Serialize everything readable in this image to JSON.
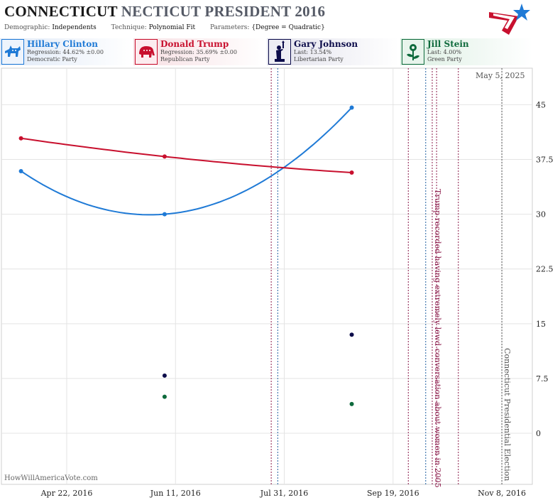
{
  "header": {
    "title_main": "CONNECTICUT",
    "title_secondary": "NECTICUT PRESIDENT 2016",
    "demographic_label": "Demographic:",
    "demographic": "Independents",
    "technique_label": "Technique:",
    "technique": "Polynomial Fit",
    "parameters_label": "Parameters:",
    "parameters": "{Degree = Quadratic}"
  },
  "candidates": [
    {
      "name": "Hillary Clinton",
      "stat": "Regression: 44.62% ±0.00",
      "party": "Democratic Party",
      "color": "#1f7ad6",
      "icon": "donkey-icon"
    },
    {
      "name": "Donald Trump",
      "stat": "Regression: 35.69% ±0.00",
      "party": "Republican Party",
      "color": "#c8102e",
      "icon": "elephant-icon"
    },
    {
      "name": "Gary Johnson",
      "stat": "Last: 13.54%",
      "party": "Libertarian Party",
      "color": "#0c0c4a",
      "icon": "statue-of-liberty-icon"
    },
    {
      "name": "Jill Stein",
      "stat": "Last: 4.00%",
      "party": "Green Party",
      "color": "#0e6a3c",
      "icon": "flower-icon"
    }
  ],
  "as_of": "May 5, 2025",
  "watermark": "HowWillAmericaVote.com",
  "chart_data": {
    "type": "line",
    "x_axis": {
      "type": "date",
      "range": [
        "2016-03-23",
        "2016-11-22"
      ],
      "ticks": [
        "Apr 22, 2016",
        "Jun 11, 2016",
        "Jul 31, 2016",
        "Sep 19, 2016",
        "Nov 8, 2016"
      ]
    },
    "y_axis": {
      "range": [
        -7,
        50
      ],
      "ticks": [
        "0",
        "7.5",
        "15",
        "22.5",
        "30",
        "37.5",
        "45"
      ],
      "position": "right"
    },
    "grid": true,
    "series": [
      {
        "name": "Hillary Clinton",
        "color": "#1f7ad6",
        "points": [
          {
            "x": "2016-04-01",
            "y": 35.9
          },
          {
            "x": "2016-06-06",
            "y": 30.0
          },
          {
            "x": "2016-08-31",
            "y": 44.6
          }
        ],
        "fit": "quadratic"
      },
      {
        "name": "Donald Trump",
        "color": "#c8102e",
        "points": [
          {
            "x": "2016-04-01",
            "y": 40.4
          },
          {
            "x": "2016-06-06",
            "y": 37.9
          },
          {
            "x": "2016-08-31",
            "y": 35.7
          }
        ],
        "fit": "quadratic"
      },
      {
        "name": "Gary Johnson",
        "color": "#0c0c4a",
        "points": [
          {
            "x": "2016-06-06",
            "y": 7.9
          },
          {
            "x": "2016-08-31",
            "y": 13.5
          }
        ],
        "fit": "none"
      },
      {
        "name": "Jill Stein",
        "color": "#0e6a3c",
        "points": [
          {
            "x": "2016-06-06",
            "y": 5.0
          },
          {
            "x": "2016-08-31",
            "y": 4.0
          }
        ],
        "fit": "none"
      }
    ],
    "events": [
      {
        "date": "2016-07-25",
        "color": "#8b1a4a"
      },
      {
        "date": "2016-07-28",
        "color": "#1f5fa0"
      },
      {
        "date": "2016-09-26",
        "color": "#8b1a4a"
      },
      {
        "date": "2016-10-04",
        "color": "#1f5fa0"
      },
      {
        "date": "2016-10-07",
        "color": "#8b1a4a",
        "label": "Trump recorded having extremely lewd conversation about women in 2005"
      },
      {
        "date": "2016-10-09",
        "color": "#8b1a4a"
      },
      {
        "date": "2016-10-19",
        "color": "#8b1a4a"
      },
      {
        "date": "2016-11-08",
        "color": "#555555",
        "label": "Connecticut Presidential Election"
      }
    ]
  }
}
